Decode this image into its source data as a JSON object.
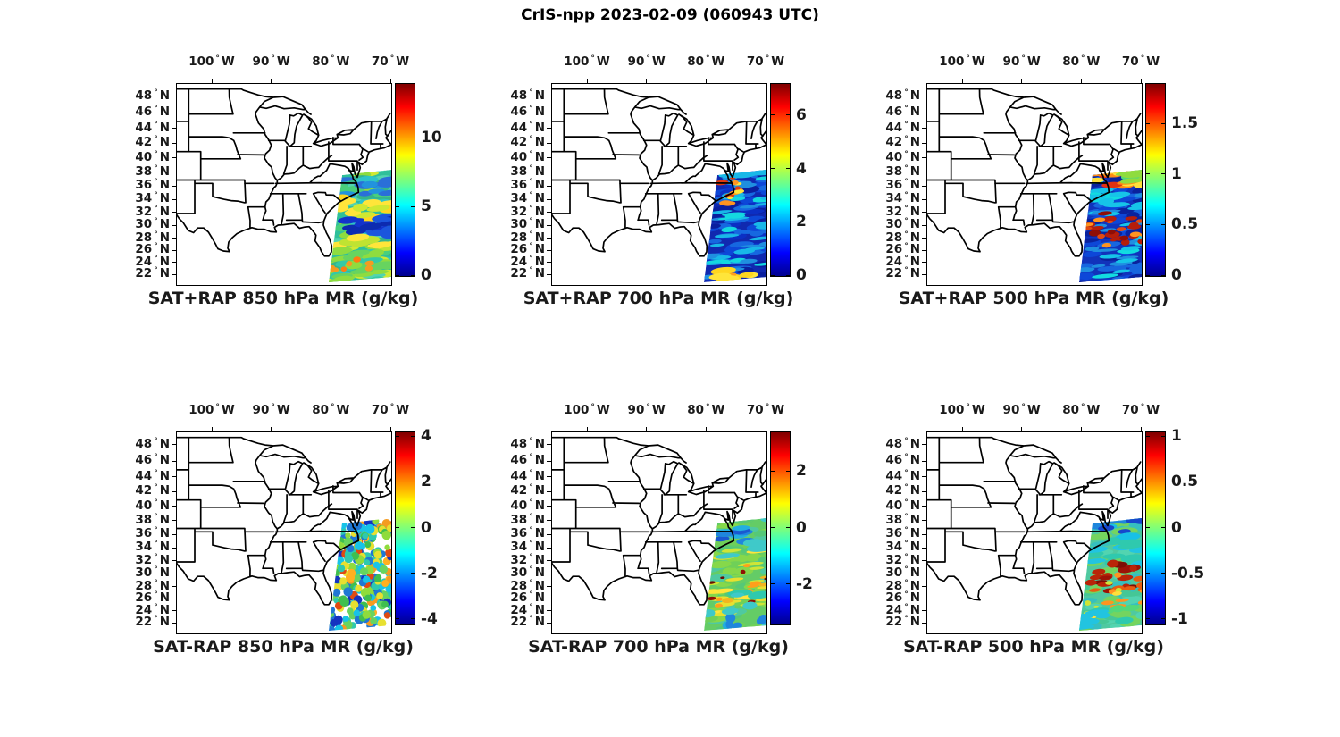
{
  "figure": {
    "title": "CrIS-npp 2023-02-09 (060943 UTC)",
    "satellite": "CrIS-npp",
    "date": "2023-02-09",
    "time_utc": "060943 UTC",
    "background_color": "#ffffff",
    "layout": "2 rows x 3 columns of maps"
  },
  "axes": {
    "lon_tick_values_deg_w": [
      100,
      90,
      80,
      70
    ],
    "lon_suffix": "W",
    "lat_tick_values_deg_n": [
      48,
      46,
      44,
      42,
      40,
      38,
      36,
      34,
      32,
      30,
      28,
      26,
      24,
      22
    ],
    "lat_suffix": "N",
    "map_lon_range_deg_w": [
      106,
      70
    ],
    "map_lat_range_deg_n": [
      20.4,
      49.6
    ],
    "basemap": "US state boundaries, Great Lakes, Atlantic and Gulf coasts"
  },
  "colors": {
    "line_color": "#000000",
    "colormap": "jet",
    "jet_stops": [
      "#00008f",
      "#0000ff",
      "#00ffff",
      "#7dff7a",
      "#ffff00",
      "#ff0000",
      "#7f0000"
    ]
  },
  "chart_data": [
    {
      "type": "map-swath",
      "title": "SAT+RAP 850 hPa MR (g/kg)",
      "operation": "SAT+RAP",
      "level_hPa": 850,
      "variable": "mixing ratio (MR)",
      "units": "g/kg",
      "colorbar": {
        "ticks": [
          0,
          5,
          10
        ],
        "vmin": 0,
        "vmax": 14
      },
      "swath": {
        "area": "Atlantic Ocean off US southeast coast, about 22N-36.5N",
        "appearance": "continuous swath, mostly green/cyan 3-7 g/kg, dark blue dry bands near 29-32N, yellow streaks, small orange spots near 24N"
      }
    },
    {
      "type": "map-swath",
      "title": "SAT+RAP 700 hPa MR (g/kg)",
      "operation": "SAT+RAP",
      "level_hPa": 700,
      "variable": "mixing ratio (MR)",
      "units": "g/kg",
      "colorbar": {
        "ticks": [
          0,
          2,
          4,
          6
        ],
        "vmin": 0,
        "vmax": 7.2
      },
      "swath": {
        "area": "Atlantic Ocean off US southeast coast, about 22N-36.5N",
        "appearance": "mostly dark blue 0-1.5 g/kg with cyan streaks, orange/red dashes near the Carolina coast, yellow/orange blobs along the south edge"
      }
    },
    {
      "type": "map-swath",
      "title": "SAT+RAP 500 hPa MR (g/kg)",
      "operation": "SAT+RAP",
      "level_hPa": 500,
      "variable": "mixing ratio (MR)",
      "units": "g/kg",
      "colorbar": {
        "ticks": [
          0,
          0.5,
          1,
          1.5
        ],
        "vmin": 0,
        "vmax": 1.9
      },
      "swath": {
        "area": "Atlantic Ocean off US southeast coast, about 22N-36.5N",
        "appearance": "blue background with cyan streaks, bright red/orange/yellow band along the top near 36N, scattered dark red patches near 29-31N"
      }
    },
    {
      "type": "map-swath-difference",
      "title": "SAT-RAP 850 hPa MR (g/kg)",
      "operation": "SAT-RAP",
      "level_hPa": 850,
      "variable": "mixing ratio difference (MR)",
      "units": "g/kg",
      "colorbar": {
        "ticks": [
          -4,
          -2,
          0,
          2,
          4
        ],
        "vmin": -4.2,
        "vmax": 4.2
      },
      "swath": {
        "area": "Atlantic Ocean off US southeast coast, about 22N-36.5N",
        "appearance": "scattered circular footprints with mixed colors: cyan/green near zero, blue negatives, yellow/orange/red positives, white gaps between dots"
      }
    },
    {
      "type": "map-swath-difference",
      "title": "SAT-RAP 700 hPa MR (g/kg)",
      "operation": "SAT-RAP",
      "level_hPa": 700,
      "variable": "mixing ratio difference (MR)",
      "units": "g/kg",
      "colorbar": {
        "ticks": [
          -2,
          0,
          2
        ],
        "vmin": -3.4,
        "vmax": 3.4
      },
      "swath": {
        "area": "Atlantic Ocean off US southeast coast, about 22N-36.5N",
        "appearance": "mostly green near zero with yellow/orange streaks mid-swath, a few small dark red dashes, blue patches near the top and blue dots along the bottom edge"
      }
    },
    {
      "type": "map-swath-difference",
      "title": "SAT-RAP 500 hPa MR (g/kg)",
      "operation": "SAT-RAP",
      "level_hPa": 500,
      "variable": "mixing ratio difference (MR)",
      "units": "g/kg",
      "colorbar": {
        "ticks": [
          -1,
          -0.5,
          0,
          0.5,
          1
        ],
        "vmin": -1.05,
        "vmax": 1.05
      },
      "swath": {
        "area": "Atlantic Ocean off US southeast coast, about 22N-36.5N",
        "appearance": "green/cyan background, blue band at the top near the coast, strong dark red band near 29-30N with orange patches below it"
      }
    }
  ]
}
